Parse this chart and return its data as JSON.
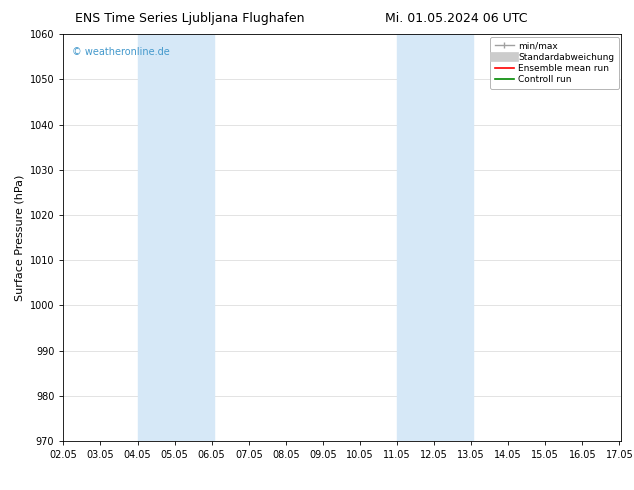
{
  "title_left": "ENS Time Series Ljubljana Flughafen",
  "title_right": "Mi. 01.05.2024 06 UTC",
  "ylabel": "Surface Pressure (hPa)",
  "ylim": [
    970,
    1060
  ],
  "yticks": [
    970,
    980,
    990,
    1000,
    1010,
    1020,
    1030,
    1040,
    1050,
    1060
  ],
  "xlim": [
    2.0,
    17.05
  ],
  "xtick_labels": [
    "02.05",
    "03.05",
    "04.05",
    "05.05",
    "06.05",
    "07.05",
    "08.05",
    "09.05",
    "10.05",
    "11.05",
    "12.05",
    "13.05",
    "14.05",
    "15.05",
    "16.05",
    "17.05"
  ],
  "xtick_positions": [
    2.0,
    3.0,
    4.0,
    5.0,
    6.0,
    7.0,
    8.0,
    9.0,
    10.0,
    11.0,
    12.0,
    13.0,
    14.0,
    15.0,
    16.0,
    17.0
  ],
  "shaded_regions": [
    {
      "xmin": 4.0,
      "xmax": 6.05,
      "color": "#d6e8f7"
    },
    {
      "xmin": 11.0,
      "xmax": 13.05,
      "color": "#d6e8f7"
    }
  ],
  "watermark_text": "© weatheronline.de",
  "watermark_color": "#4499cc",
  "background_color": "#ffffff",
  "title_fontsize": 9,
  "tick_fontsize": 7,
  "ylabel_fontsize": 8,
  "watermark_fontsize": 7,
  "legend_fontsize": 6.5
}
